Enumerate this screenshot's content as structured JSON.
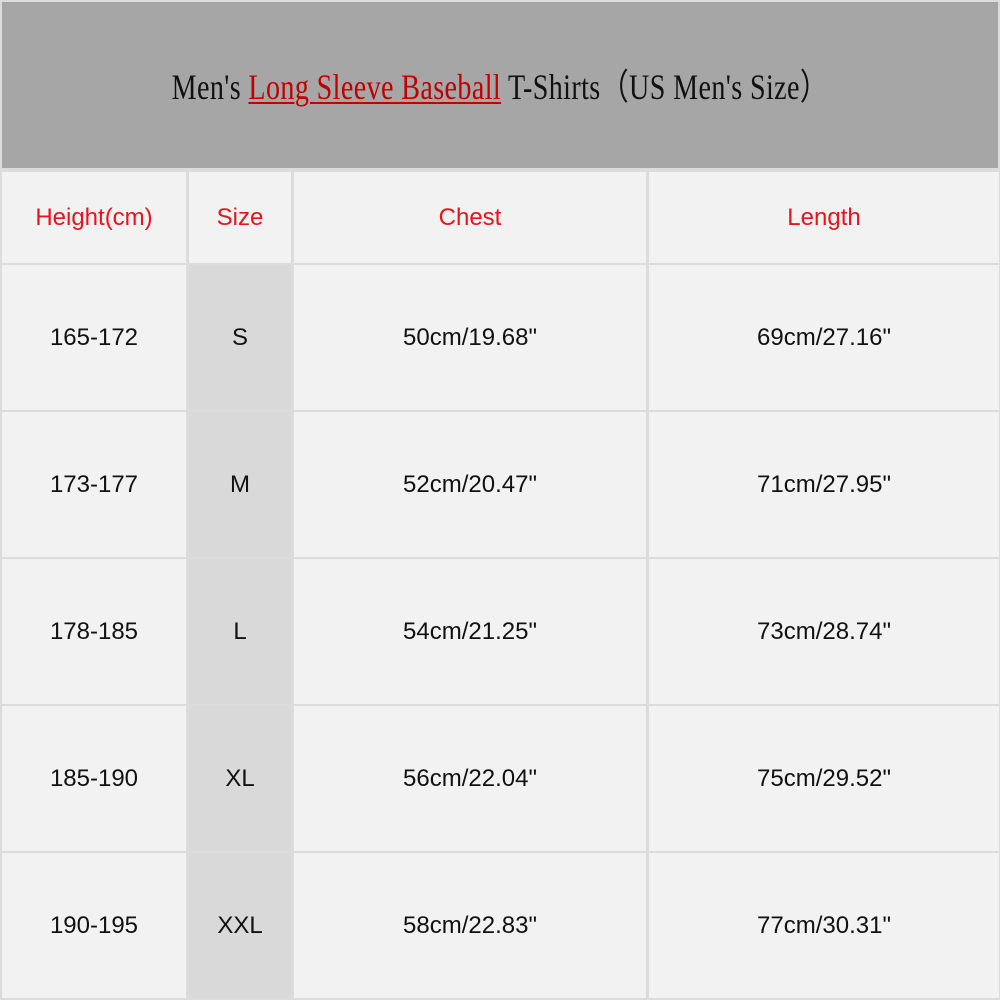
{
  "title": {
    "prefix": "Men's ",
    "highlight": "Long Sleeve Baseball",
    "suffix": " T-Shirts（US  Men's  Size）"
  },
  "colors": {
    "header_bg": "#a6a6a6",
    "highlight": "#c00000",
    "column_header": "#e8141c",
    "cell_bg": "#f2f2f2",
    "size_col_bg": "#d9d9d9"
  },
  "table": {
    "headers": [
      "Height(cm)",
      "Size",
      "Chest",
      "Length"
    ],
    "rows": [
      [
        "165-172",
        "S",
        "50cm/19.68\"",
        "69cm/27.16\""
      ],
      [
        "173-177",
        "M",
        "52cm/20.47\"",
        "71cm/27.95\""
      ],
      [
        "178-185",
        "L",
        "54cm/21.25\"",
        "73cm/28.74\""
      ],
      [
        "185-190",
        "XL",
        "56cm/22.04\"",
        "75cm/29.52\""
      ],
      [
        "190-195",
        "XXL",
        "58cm/22.83\"",
        "77cm/30.31\""
      ]
    ]
  }
}
